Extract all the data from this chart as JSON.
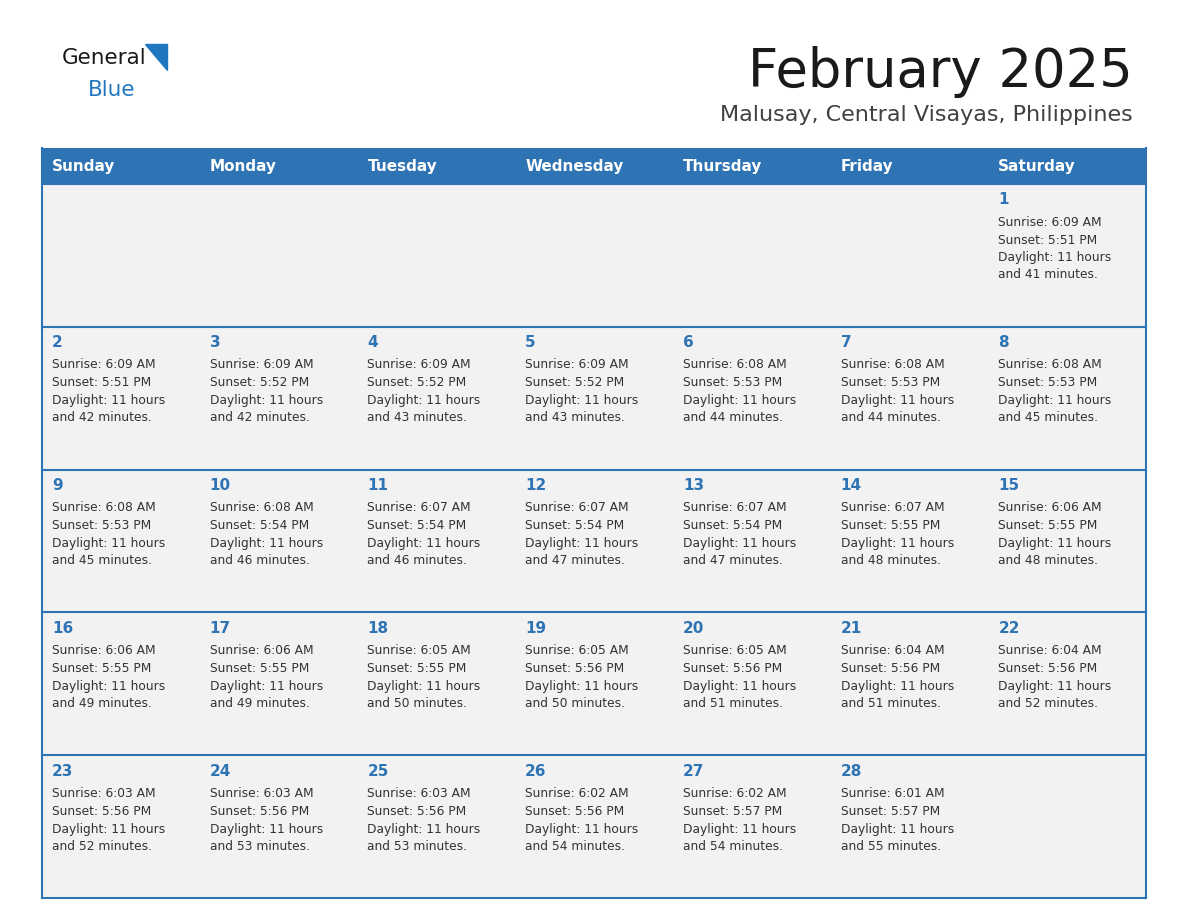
{
  "title": "February 2025",
  "subtitle": "Malusay, Central Visayas, Philippines",
  "header_bg": "#2E74B5",
  "header_text_color": "#FFFFFF",
  "cell_bg": "#F2F2F2",
  "day_number_color": "#2E74B5",
  "text_color": "#333333",
  "border_color": "#2E74B5",
  "days_of_week": [
    "Sunday",
    "Monday",
    "Tuesday",
    "Wednesday",
    "Thursday",
    "Friday",
    "Saturday"
  ],
  "weeks": [
    [
      {
        "day": null,
        "sunrise": null,
        "sunset": null,
        "daylight_line1": null,
        "daylight_line2": null
      },
      {
        "day": null,
        "sunrise": null,
        "sunset": null,
        "daylight_line1": null,
        "daylight_line2": null
      },
      {
        "day": null,
        "sunrise": null,
        "sunset": null,
        "daylight_line1": null,
        "daylight_line2": null
      },
      {
        "day": null,
        "sunrise": null,
        "sunset": null,
        "daylight_line1": null,
        "daylight_line2": null
      },
      {
        "day": null,
        "sunrise": null,
        "sunset": null,
        "daylight_line1": null,
        "daylight_line2": null
      },
      {
        "day": null,
        "sunrise": null,
        "sunset": null,
        "daylight_line1": null,
        "daylight_line2": null
      },
      {
        "day": 1,
        "sunrise": "6:09 AM",
        "sunset": "5:51 PM",
        "daylight_line1": "Daylight: 11 hours",
        "daylight_line2": "and 41 minutes."
      }
    ],
    [
      {
        "day": 2,
        "sunrise": "6:09 AM",
        "sunset": "5:51 PM",
        "daylight_line1": "Daylight: 11 hours",
        "daylight_line2": "and 42 minutes."
      },
      {
        "day": 3,
        "sunrise": "6:09 AM",
        "sunset": "5:52 PM",
        "daylight_line1": "Daylight: 11 hours",
        "daylight_line2": "and 42 minutes."
      },
      {
        "day": 4,
        "sunrise": "6:09 AM",
        "sunset": "5:52 PM",
        "daylight_line1": "Daylight: 11 hours",
        "daylight_line2": "and 43 minutes."
      },
      {
        "day": 5,
        "sunrise": "6:09 AM",
        "sunset": "5:52 PM",
        "daylight_line1": "Daylight: 11 hours",
        "daylight_line2": "and 43 minutes."
      },
      {
        "day": 6,
        "sunrise": "6:08 AM",
        "sunset": "5:53 PM",
        "daylight_line1": "Daylight: 11 hours",
        "daylight_line2": "and 44 minutes."
      },
      {
        "day": 7,
        "sunrise": "6:08 AM",
        "sunset": "5:53 PM",
        "daylight_line1": "Daylight: 11 hours",
        "daylight_line2": "and 44 minutes."
      },
      {
        "day": 8,
        "sunrise": "6:08 AM",
        "sunset": "5:53 PM",
        "daylight_line1": "Daylight: 11 hours",
        "daylight_line2": "and 45 minutes."
      }
    ],
    [
      {
        "day": 9,
        "sunrise": "6:08 AM",
        "sunset": "5:53 PM",
        "daylight_line1": "Daylight: 11 hours",
        "daylight_line2": "and 45 minutes."
      },
      {
        "day": 10,
        "sunrise": "6:08 AM",
        "sunset": "5:54 PM",
        "daylight_line1": "Daylight: 11 hours",
        "daylight_line2": "and 46 minutes."
      },
      {
        "day": 11,
        "sunrise": "6:07 AM",
        "sunset": "5:54 PM",
        "daylight_line1": "Daylight: 11 hours",
        "daylight_line2": "and 46 minutes."
      },
      {
        "day": 12,
        "sunrise": "6:07 AM",
        "sunset": "5:54 PM",
        "daylight_line1": "Daylight: 11 hours",
        "daylight_line2": "and 47 minutes."
      },
      {
        "day": 13,
        "sunrise": "6:07 AM",
        "sunset": "5:54 PM",
        "daylight_line1": "Daylight: 11 hours",
        "daylight_line2": "and 47 minutes."
      },
      {
        "day": 14,
        "sunrise": "6:07 AM",
        "sunset": "5:55 PM",
        "daylight_line1": "Daylight: 11 hours",
        "daylight_line2": "and 48 minutes."
      },
      {
        "day": 15,
        "sunrise": "6:06 AM",
        "sunset": "5:55 PM",
        "daylight_line1": "Daylight: 11 hours",
        "daylight_line2": "and 48 minutes."
      }
    ],
    [
      {
        "day": 16,
        "sunrise": "6:06 AM",
        "sunset": "5:55 PM",
        "daylight_line1": "Daylight: 11 hours",
        "daylight_line2": "and 49 minutes."
      },
      {
        "day": 17,
        "sunrise": "6:06 AM",
        "sunset": "5:55 PM",
        "daylight_line1": "Daylight: 11 hours",
        "daylight_line2": "and 49 minutes."
      },
      {
        "day": 18,
        "sunrise": "6:05 AM",
        "sunset": "5:55 PM",
        "daylight_line1": "Daylight: 11 hours",
        "daylight_line2": "and 50 minutes."
      },
      {
        "day": 19,
        "sunrise": "6:05 AM",
        "sunset": "5:56 PM",
        "daylight_line1": "Daylight: 11 hours",
        "daylight_line2": "and 50 minutes."
      },
      {
        "day": 20,
        "sunrise": "6:05 AM",
        "sunset": "5:56 PM",
        "daylight_line1": "Daylight: 11 hours",
        "daylight_line2": "and 51 minutes."
      },
      {
        "day": 21,
        "sunrise": "6:04 AM",
        "sunset": "5:56 PM",
        "daylight_line1": "Daylight: 11 hours",
        "daylight_line2": "and 51 minutes."
      },
      {
        "day": 22,
        "sunrise": "6:04 AM",
        "sunset": "5:56 PM",
        "daylight_line1": "Daylight: 11 hours",
        "daylight_line2": "and 52 minutes."
      }
    ],
    [
      {
        "day": 23,
        "sunrise": "6:03 AM",
        "sunset": "5:56 PM",
        "daylight_line1": "Daylight: 11 hours",
        "daylight_line2": "and 52 minutes."
      },
      {
        "day": 24,
        "sunrise": "6:03 AM",
        "sunset": "5:56 PM",
        "daylight_line1": "Daylight: 11 hours",
        "daylight_line2": "and 53 minutes."
      },
      {
        "day": 25,
        "sunrise": "6:03 AM",
        "sunset": "5:56 PM",
        "daylight_line1": "Daylight: 11 hours",
        "daylight_line2": "and 53 minutes."
      },
      {
        "day": 26,
        "sunrise": "6:02 AM",
        "sunset": "5:56 PM",
        "daylight_line1": "Daylight: 11 hours",
        "daylight_line2": "and 54 minutes."
      },
      {
        "day": 27,
        "sunrise": "6:02 AM",
        "sunset": "5:57 PM",
        "daylight_line1": "Daylight: 11 hours",
        "daylight_line2": "and 54 minutes."
      },
      {
        "day": 28,
        "sunrise": "6:01 AM",
        "sunset": "5:57 PM",
        "daylight_line1": "Daylight: 11 hours",
        "daylight_line2": "and 55 minutes."
      },
      {
        "day": null,
        "sunrise": null,
        "sunset": null,
        "daylight_line1": null,
        "daylight_line2": null
      }
    ]
  ]
}
